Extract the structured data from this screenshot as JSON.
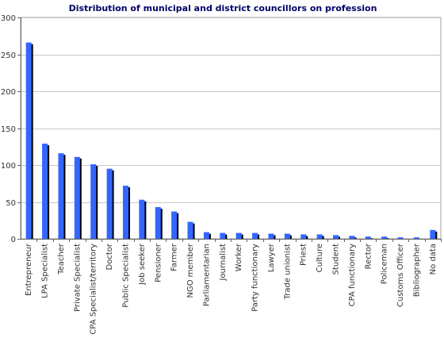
{
  "chart_data": {
    "type": "bar",
    "title": "Distribution of municipal and district councillors on profession",
    "xlabel": "",
    "ylabel": "",
    "ylim": [
      0,
      300
    ],
    "yticks": [
      0,
      50,
      100,
      150,
      200,
      250,
      300
    ],
    "grid": true,
    "legend": "none",
    "bar_color": "#3366ff",
    "shadow_color": "#000000",
    "grid_color": "#c8c8c8",
    "categories": [
      "Entrepreneur",
      "LPA Specialist",
      "Teacher",
      "Private Specialist",
      "CPA Specialist/territory",
      "Doctor",
      "Public Specialist",
      "Job seeker",
      "Pensioner",
      "Farmer",
      "NGO member",
      "Parliamentarian",
      "Journalist",
      "Worker",
      "Party functionary",
      "Lawyer",
      "Trade unionist",
      "Priest",
      "Culture",
      "Student",
      "CPA functionary",
      "Rector",
      "Policeman",
      "Customs Officer",
      "Bibliographer",
      "No data"
    ],
    "values": [
      266,
      129,
      116,
      111,
      101,
      95,
      72,
      53,
      43,
      37,
      23,
      9,
      8,
      8,
      8,
      7,
      7,
      6,
      6,
      5,
      4,
      3,
      3,
      2,
      2,
      12
    ]
  }
}
